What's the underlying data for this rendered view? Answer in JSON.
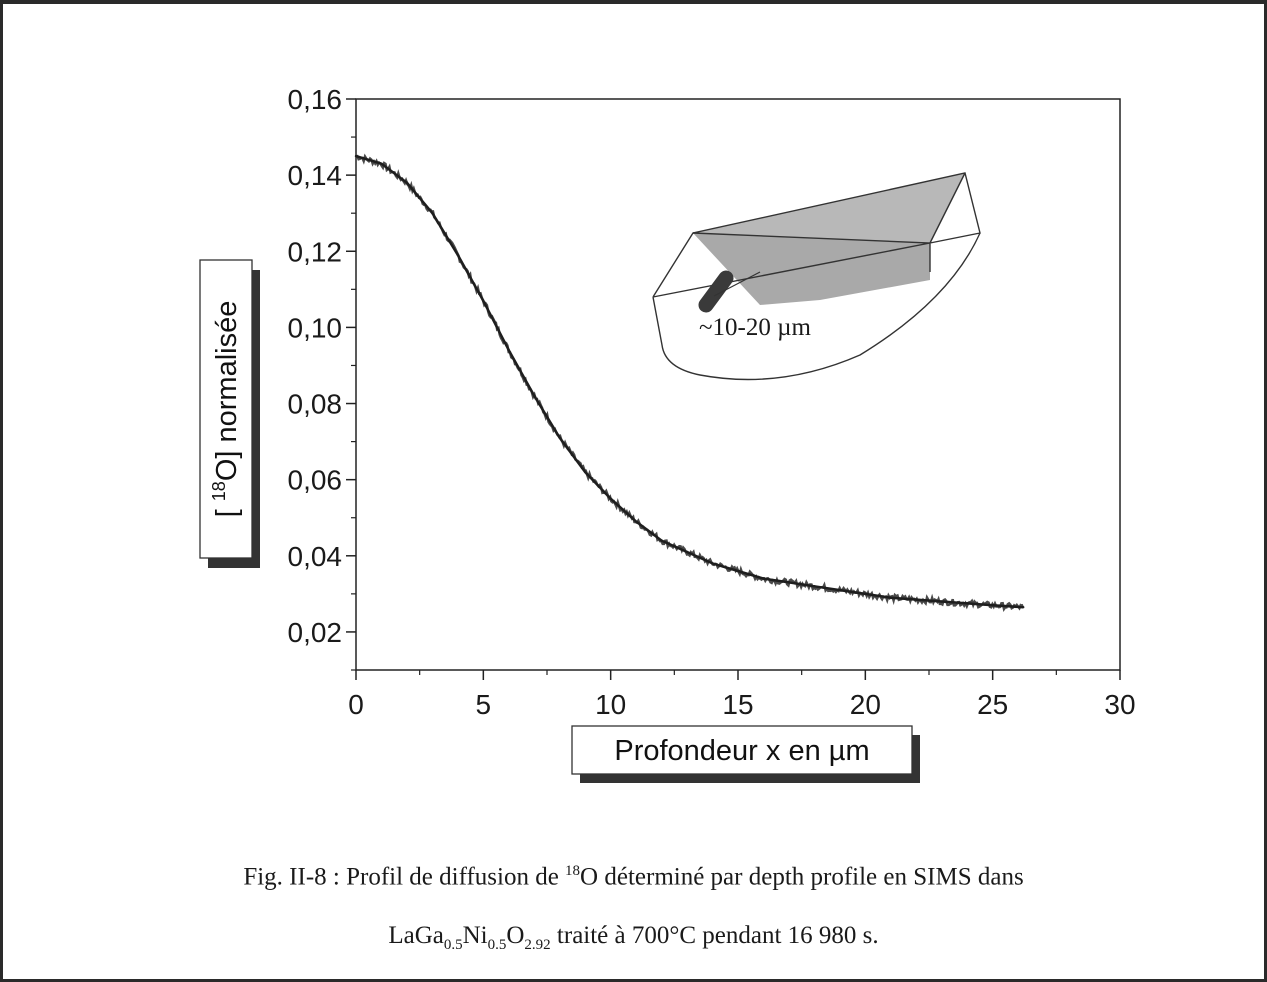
{
  "chart_data": {
    "type": "line",
    "xlabel": "Profondeur x en µm",
    "ylabel_parts": {
      "open": "[ ",
      "sup": "18",
      "rest": "O] normalisée"
    },
    "xlim": [
      0,
      30
    ],
    "ylim": [
      0.01,
      0.16
    ],
    "x_ticks": [
      0,
      5,
      10,
      15,
      20,
      25,
      30
    ],
    "x_tick_labels": [
      "0",
      "5",
      "10",
      "15",
      "20",
      "25",
      "30"
    ],
    "y_ticks": [
      0.02,
      0.04,
      0.06,
      0.08,
      0.1,
      0.12,
      0.14,
      0.16
    ],
    "y_tick_labels": [
      "0,02",
      "0,04",
      "0,06",
      "0,08",
      "0,10",
      "0,12",
      "0,14",
      "0,16"
    ],
    "grid": false,
    "series": [
      {
        "x": [
          0,
          1,
          2,
          3,
          4,
          5,
          6,
          7,
          8,
          9,
          10,
          11,
          12,
          13,
          14,
          15,
          16,
          17,
          18,
          19,
          20,
          21,
          22,
          23,
          24,
          25,
          26.2
        ],
        "y": [
          0.145,
          0.143,
          0.138,
          0.13,
          0.119,
          0.107,
          0.094,
          0.082,
          0.071,
          0.062,
          0.055,
          0.049,
          0.044,
          0.041,
          0.038,
          0.036,
          0.034,
          0.033,
          0.032,
          0.031,
          0.03,
          0.029,
          0.0285,
          0.028,
          0.0275,
          0.027,
          0.0265
        ]
      }
    ],
    "inset": {
      "label": "~10-20 µm"
    }
  },
  "caption": {
    "line1_before": "Fig. II-8 : Profil de diffusion de ",
    "line1_sup": "18",
    "line1_after": "O déterminé par depth profile en SIMS dans",
    "line2_parts": [
      "LaGa",
      "0.5",
      "Ni",
      "0.5",
      "O",
      "2.92",
      " traité à 700°C pendant 16 980 s."
    ]
  }
}
